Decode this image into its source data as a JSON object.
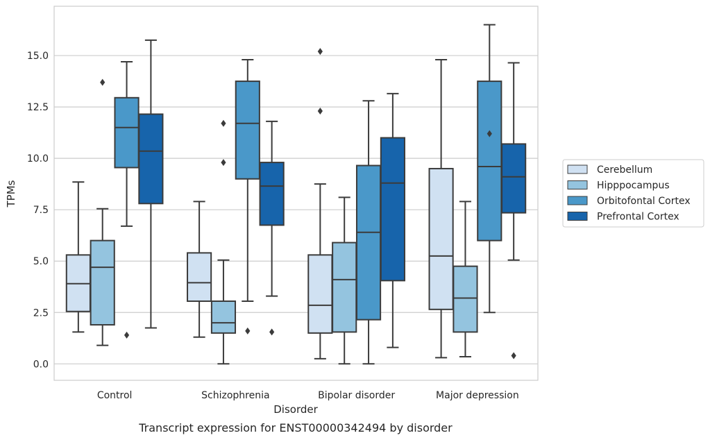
{
  "chart_data": {
    "type": "box",
    "title": "",
    "caption": "Transcript expression for ENST00000342494 by disorder",
    "xlabel": "Disorder",
    "ylabel": "TPMs",
    "ylim": [
      -0.8,
      17.4
    ],
    "yticks": [
      0.0,
      2.5,
      5.0,
      7.5,
      10.0,
      12.5,
      15.0
    ],
    "ytick_labels": [
      "0.0",
      "2.5",
      "5.0",
      "7.5",
      "10.0",
      "12.5",
      "15.0"
    ],
    "grid": true,
    "legend_position": "right",
    "categories": [
      "Control",
      "Schizophrenia",
      "Bipolar disorder",
      "Major depression"
    ],
    "series": [
      {
        "name": "Cerebellum",
        "color": "#d0e1f2",
        "boxes": [
          {
            "whisker_low": 1.55,
            "q1": 2.55,
            "median": 3.9,
            "q3": 5.3,
            "whisker_high": 8.85,
            "outliers": []
          },
          {
            "whisker_low": 1.3,
            "q1": 3.05,
            "median": 3.95,
            "q3": 5.4,
            "whisker_high": 7.9,
            "outliers": []
          },
          {
            "whisker_low": 0.25,
            "q1": 1.5,
            "median": 2.85,
            "q3": 5.3,
            "whisker_high": 8.75,
            "outliers": [
              12.3,
              15.2
            ]
          },
          {
            "whisker_low": 0.3,
            "q1": 2.65,
            "median": 5.25,
            "q3": 9.5,
            "whisker_high": 14.8,
            "outliers": []
          }
        ]
      },
      {
        "name": "Hipppocampus",
        "color": "#94c4df",
        "boxes": [
          {
            "whisker_low": 0.9,
            "q1": 1.9,
            "median": 4.7,
            "q3": 6.0,
            "whisker_high": 7.55,
            "outliers": [
              13.7
            ]
          },
          {
            "whisker_low": 0.0,
            "q1": 1.5,
            "median": 2.0,
            "q3": 3.05,
            "whisker_high": 5.05,
            "outliers": [
              9.8,
              11.7
            ]
          },
          {
            "whisker_low": 0.0,
            "q1": 1.55,
            "median": 4.1,
            "q3": 5.9,
            "whisker_high": 8.1,
            "outliers": []
          },
          {
            "whisker_low": 0.35,
            "q1": 1.55,
            "median": 3.2,
            "q3": 4.75,
            "whisker_high": 7.9,
            "outliers": []
          }
        ]
      },
      {
        "name": "Orbitofontal Cortex",
        "color": "#4a98c9",
        "boxes": [
          {
            "whisker_low": 6.7,
            "q1": 9.55,
            "median": 11.5,
            "q3": 12.95,
            "whisker_high": 14.7,
            "outliers": [
              1.4
            ]
          },
          {
            "whisker_low": 3.05,
            "q1": 9.0,
            "median": 11.7,
            "q3": 13.75,
            "whisker_high": 14.8,
            "outliers": [
              1.6
            ]
          },
          {
            "whisker_low": 0.0,
            "q1": 2.15,
            "median": 6.4,
            "q3": 9.65,
            "whisker_high": 12.8,
            "outliers": []
          },
          {
            "whisker_low": 2.5,
            "q1": 6.0,
            "median": 9.6,
            "q3": 13.75,
            "whisker_high": 16.5,
            "outliers": [
              11.2
            ]
          }
        ]
      },
      {
        "name": "Prefrontal Cortex",
        "color": "#1764ab",
        "boxes": [
          {
            "whisker_low": 1.75,
            "q1": 7.8,
            "median": 10.35,
            "q3": 12.15,
            "whisker_high": 15.75,
            "outliers": []
          },
          {
            "whisker_low": 3.3,
            "q1": 6.75,
            "median": 8.65,
            "q3": 9.8,
            "whisker_high": 11.8,
            "outliers": [
              1.55
            ]
          },
          {
            "whisker_low": 0.8,
            "q1": 4.05,
            "median": 8.8,
            "q3": 11.0,
            "whisker_high": 13.15,
            "outliers": []
          },
          {
            "whisker_low": 5.05,
            "q1": 7.35,
            "median": 9.1,
            "q3": 10.7,
            "whisker_high": 14.65,
            "outliers": [
              0.4
            ]
          }
        ]
      }
    ]
  }
}
